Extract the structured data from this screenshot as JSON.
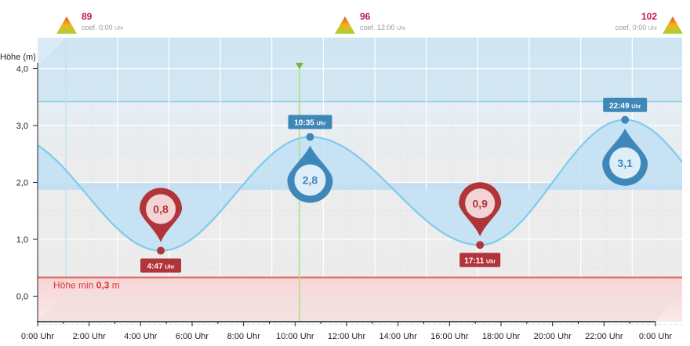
{
  "colors": {
    "coef_value": "#c0185a",
    "wave": "#7ecbef",
    "wave_fill": "#bfe0f4",
    "low_marker": "#b0343a",
    "high_marker": "#3f87b8",
    "min_line": "#e36060",
    "now_line": "#aee07a"
  },
  "coefficients": [
    {
      "value": "89",
      "label": "coef. 0:00",
      "unit": "Uhr"
    },
    {
      "value": "96",
      "label": "coef. 12:00",
      "unit": "Uhr"
    },
    {
      "value": "102",
      "label": "coef. 0:00",
      "unit": "Uhr"
    }
  ],
  "chart_data": {
    "type": "line",
    "ylabel": "Höhe (m)",
    "xlabel": "",
    "ylim": [
      -0.45,
      4.5
    ],
    "xlim_hours": [
      0,
      24
    ],
    "y_ticks": [
      {
        "value": 0,
        "label": "0,0"
      },
      {
        "value": 1,
        "label": "1,0"
      },
      {
        "value": 2,
        "label": "2,0"
      },
      {
        "value": 3,
        "label": "3,0"
      },
      {
        "value": 4,
        "label": "4,0"
      }
    ],
    "x_ticks": [
      {
        "value": 0,
        "label": "0:00 Uhr"
      },
      {
        "value": 2,
        "label": "2:00 Uhr"
      },
      {
        "value": 4,
        "label": "4:00 Uhr"
      },
      {
        "value": 6,
        "label": "6:00 Uhr"
      },
      {
        "value": 8,
        "label": "8:00 Uhr"
      },
      {
        "value": 10,
        "label": "10:00 Uhr"
      },
      {
        "value": 12,
        "label": "12:00 Uhr"
      },
      {
        "value": 14,
        "label": "14:00 Uhr"
      },
      {
        "value": 16,
        "label": "16:00 Uhr"
      },
      {
        "value": 18,
        "label": "18:00 Uhr"
      },
      {
        "value": 20,
        "label": "20:00 Uhr"
      },
      {
        "value": 22,
        "label": "22:00 Uhr"
      },
      {
        "value": 24,
        "label": "0:00 Uhr"
      }
    ],
    "extrema": [
      {
        "kind": "low",
        "hour": 4.783,
        "height": 0.8,
        "height_label": "0,8",
        "time_label": "4:47",
        "unit": "Uhr"
      },
      {
        "kind": "high",
        "hour": 10.583,
        "height": 2.8,
        "height_label": "2,8",
        "time_label": "10:35",
        "unit": "Uhr"
      },
      {
        "kind": "low",
        "hour": 17.183,
        "height": 0.9,
        "height_label": "0,9",
        "time_label": "17:11",
        "unit": "Uhr"
      },
      {
        "kind": "high",
        "hour": 22.817,
        "height": 3.1,
        "height_label": "3,1",
        "time_label": "22:49",
        "unit": "Uhr"
      }
    ],
    "start_height": 2.55,
    "end_height": 2.6,
    "min_height": {
      "prefix": "Höhe min",
      "value": "0,3",
      "unit": "m",
      "level": 0.33
    },
    "reference_band_top": 3.42,
    "mid_band": [
      1.87,
      2.0
    ],
    "now_hour": 10.17,
    "grid": true
  }
}
